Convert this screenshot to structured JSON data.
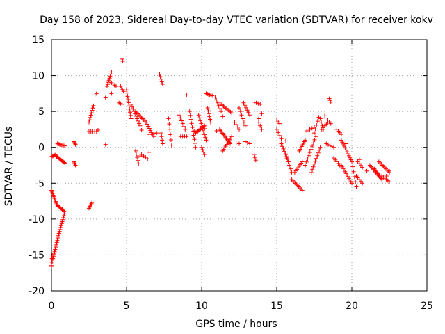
{
  "chart_data": {
    "type": "scatter",
    "title": "Day 158 of 2023, Sidereal Day-to-day VTEC variation (SDTVAR) for receiver kokv",
    "xlabel": "GPS time / hours",
    "ylabel": "SDTVAR / TECUs",
    "xlim": [
      0,
      25
    ],
    "ylim": [
      -20,
      15
    ],
    "xticks": [
      0,
      5,
      10,
      15,
      20,
      25
    ],
    "yticks": [
      -20,
      -15,
      -10,
      -5,
      0,
      5,
      10,
      15
    ],
    "grid": true,
    "marker": "+",
    "color": "#ff0000",
    "series": [
      {
        "name": "SDTVAR",
        "segments": [
          {
            "x0": 0.0,
            "y0": -6.0,
            "x1": 0.35,
            "y1": -8.0,
            "n": 10
          },
          {
            "x0": 0.35,
            "y0": -8.0,
            "x1": 0.9,
            "y1": -9.0,
            "n": 10
          },
          {
            "x0": 0.0,
            "y0": -16.5,
            "x1": 0.05,
            "y1": -15.0,
            "n": 4
          },
          {
            "x0": 0.1,
            "y0": -15.5,
            "x1": 0.5,
            "y1": -12.0,
            "n": 12
          },
          {
            "x0": 0.5,
            "y0": -12.0,
            "x1": 0.9,
            "y1": -9.0,
            "n": 12
          },
          {
            "x0": 0.0,
            "y0": -1.3,
            "x1": 0.3,
            "y1": -1.0,
            "n": 6
          },
          {
            "x0": 0.3,
            "y0": -1.2,
            "x1": 0.9,
            "y1": -2.2,
            "n": 12
          },
          {
            "x0": 0.4,
            "y0": 0.5,
            "x1": 0.9,
            "y1": 0.2,
            "n": 8
          },
          {
            "x0": 1.5,
            "y0": 0.8,
            "x1": 1.6,
            "y1": 0.4,
            "n": 4
          },
          {
            "x0": 1.5,
            "y0": -2.0,
            "x1": 1.6,
            "y1": -2.5,
            "n": 4
          },
          {
            "x0": 2.5,
            "y0": -8.5,
            "x1": 2.7,
            "y1": -7.7,
            "n": 6
          },
          {
            "x0": 2.5,
            "y0": 3.5,
            "x1": 2.8,
            "y1": 5.8,
            "n": 8
          },
          {
            "x0": 2.5,
            "y0": 2.2,
            "x1": 3.0,
            "y1": 2.2,
            "n": 5
          },
          {
            "x0": 3.7,
            "y0": 8.5,
            "x1": 4.0,
            "y1": 10.5,
            "n": 8
          },
          {
            "x0": 4.0,
            "y0": 9.0,
            "x1": 4.3,
            "y1": 8.5,
            "n": 4
          },
          {
            "x0": 4.6,
            "y0": 8.5,
            "x1": 4.8,
            "y1": 7.8,
            "n": 4
          },
          {
            "x0": 4.5,
            "y0": 6.2,
            "x1": 4.7,
            "y1": 6.0,
            "n": 3
          },
          {
            "x0": 5.0,
            "y0": 8.0,
            "x1": 5.3,
            "y1": 4.0,
            "n": 10
          },
          {
            "x0": 5.3,
            "y0": 6.0,
            "x1": 5.9,
            "y1": 3.0,
            "n": 10
          },
          {
            "x0": 5.6,
            "y0": 5.0,
            "x1": 6.3,
            "y1": 3.5,
            "n": 10
          },
          {
            "x0": 5.6,
            "y0": -0.5,
            "x1": 5.8,
            "y1": -2.3,
            "n": 5
          },
          {
            "x0": 6.0,
            "y0": -1.0,
            "x1": 6.4,
            "y1": -1.6,
            "n": 4
          },
          {
            "x0": 6.3,
            "y0": 3.5,
            "x1": 6.8,
            "y1": 1.5,
            "n": 8
          },
          {
            "x0": 6.5,
            "y0": 1.8,
            "x1": 7.0,
            "y1": 2.0,
            "n": 4
          },
          {
            "x0": 7.2,
            "y0": 10.2,
            "x1": 7.4,
            "y1": 8.8,
            "n": 5
          },
          {
            "x0": 7.3,
            "y0": 2.0,
            "x1": 7.4,
            "y1": 0.5,
            "n": 4
          },
          {
            "x0": 7.8,
            "y0": 4.0,
            "x1": 8.0,
            "y1": 0.3,
            "n": 6
          },
          {
            "x0": 8.5,
            "y0": 4.5,
            "x1": 8.9,
            "y1": 2.5,
            "n": 6
          },
          {
            "x0": 8.6,
            "y0": 1.5,
            "x1": 9.0,
            "y1": 1.5,
            "n": 4
          },
          {
            "x0": 9.2,
            "y0": 5.0,
            "x1": 9.6,
            "y1": 0.0,
            "n": 10
          },
          {
            "x0": 9.6,
            "y0": 2.0,
            "x1": 10.2,
            "y1": 3.0,
            "n": 10
          },
          {
            "x0": 9.8,
            "y0": 4.5,
            "x1": 10.3,
            "y1": 1.0,
            "n": 10
          },
          {
            "x0": 10.0,
            "y0": 0.0,
            "x1": 10.2,
            "y1": -1.0,
            "n": 4
          },
          {
            "x0": 10.3,
            "y0": 7.5,
            "x1": 10.7,
            "y1": 7.2,
            "n": 6
          },
          {
            "x0": 10.4,
            "y0": 5.5,
            "x1": 10.6,
            "y1": 3.5,
            "n": 6
          },
          {
            "x0": 10.9,
            "y0": 7.0,
            "x1": 11.3,
            "y1": 5.0,
            "n": 6
          },
          {
            "x0": 11.3,
            "y0": 6.0,
            "x1": 12.0,
            "y1": 4.8,
            "n": 10
          },
          {
            "x0": 11.2,
            "y0": 2.5,
            "x1": 11.9,
            "y1": 0.5,
            "n": 12
          },
          {
            "x0": 11.4,
            "y0": -0.5,
            "x1": 12.0,
            "y1": 1.5,
            "n": 10
          },
          {
            "x0": 12.2,
            "y0": 3.5,
            "x1": 12.5,
            "y1": 2.5,
            "n": 4
          },
          {
            "x0": 12.5,
            "y0": 5.5,
            "x1": 12.9,
            "y1": 3.0,
            "n": 6
          },
          {
            "x0": 12.8,
            "y0": 6.2,
            "x1": 13.2,
            "y1": 4.5,
            "n": 6
          },
          {
            "x0": 12.9,
            "y0": 0.8,
            "x1": 13.2,
            "y1": 0.5,
            "n": 3
          },
          {
            "x0": 13.5,
            "y0": 6.3,
            "x1": 13.9,
            "y1": 6.0,
            "n": 4
          },
          {
            "x0": 13.5,
            "y0": -1.0,
            "x1": 13.6,
            "y1": -1.8,
            "n": 3
          },
          {
            "x0": 13.8,
            "y0": 3.5,
            "x1": 14.0,
            "y1": 2.5,
            "n": 3
          },
          {
            "x0": 15.0,
            "y0": 3.8,
            "x1": 15.2,
            "y1": 3.3,
            "n": 3
          },
          {
            "x0": 15.0,
            "y0": 2.5,
            "x1": 15.3,
            "y1": 1.2,
            "n": 4
          },
          {
            "x0": 15.3,
            "y0": 0.5,
            "x1": 15.8,
            "y1": -2.0,
            "n": 8
          },
          {
            "x0": 15.6,
            "y0": -1.0,
            "x1": 16.0,
            "y1": -3.5,
            "n": 6
          },
          {
            "x0": 16.0,
            "y0": -4.5,
            "x1": 16.7,
            "y1": -6.0,
            "n": 10
          },
          {
            "x0": 16.2,
            "y0": -3.5,
            "x1": 16.7,
            "y1": -2.0,
            "n": 8
          },
          {
            "x0": 16.5,
            "y0": -0.5,
            "x1": 16.9,
            "y1": 1.0,
            "n": 8
          },
          {
            "x0": 16.9,
            "y0": -2.5,
            "x1": 17.6,
            "y1": 1.5,
            "n": 10
          },
          {
            "x0": 17.2,
            "y0": 2.5,
            "x1": 17.5,
            "y1": 2.8,
            "n": 3
          },
          {
            "x0": 17.5,
            "y0": 2.0,
            "x1": 17.8,
            "y1": 4.2,
            "n": 5
          },
          {
            "x0": 17.3,
            "y0": -3.5,
            "x1": 17.9,
            "y1": 0.0,
            "n": 10
          },
          {
            "x0": 17.9,
            "y0": 4.0,
            "x1": 18.1,
            "y1": 2.5,
            "n": 4
          },
          {
            "x0": 18.0,
            "y0": 2.5,
            "x1": 18.4,
            "y1": 3.5,
            "n": 5
          },
          {
            "x0": 18.4,
            "y0": 3.8,
            "x1": 18.6,
            "y1": 3.3,
            "n": 3
          },
          {
            "x0": 18.5,
            "y0": 6.8,
            "x1": 18.6,
            "y1": 6.3,
            "n": 3
          },
          {
            "x0": 18.3,
            "y0": 0.5,
            "x1": 18.8,
            "y1": 0.0,
            "n": 5
          },
          {
            "x0": 18.8,
            "y0": -1.5,
            "x1": 19.2,
            "y1": -2.5,
            "n": 5
          },
          {
            "x0": 19.0,
            "y0": 2.5,
            "x1": 19.3,
            "y1": 1.8,
            "n": 4
          },
          {
            "x0": 19.3,
            "y0": -2.5,
            "x1": 20.0,
            "y1": -5.0,
            "n": 12
          },
          {
            "x0": 19.3,
            "y0": 1.0,
            "x1": 20.0,
            "y1": -2.0,
            "n": 12
          },
          {
            "x0": 20.0,
            "y0": -2.0,
            "x1": 20.3,
            "y1": -5.5,
            "n": 6
          },
          {
            "x0": 20.3,
            "y0": -4.0,
            "x1": 20.7,
            "y1": -5.0,
            "n": 5
          },
          {
            "x0": 20.4,
            "y0": -2.0,
            "x1": 20.7,
            "y1": -2.8,
            "n": 4
          },
          {
            "x0": 21.2,
            "y0": -2.5,
            "x1": 21.8,
            "y1": -4.0,
            "n": 10
          },
          {
            "x0": 21.5,
            "y0": -3.0,
            "x1": 22.0,
            "y1": -4.5,
            "n": 10
          },
          {
            "x0": 21.8,
            "y0": -2.0,
            "x1": 22.5,
            "y1": -3.5,
            "n": 10
          },
          {
            "x0": 22.0,
            "y0": -4.0,
            "x1": 22.5,
            "y1": -4.8,
            "n": 6
          }
        ],
        "points": [
          [
            0.05,
            -16.0
          ],
          [
            0.0,
            -16.5
          ],
          [
            0.05,
            -15.5
          ],
          [
            3.6,
            0.4
          ],
          [
            3.6,
            6.9
          ],
          [
            4.0,
            7.5
          ],
          [
            4.7,
            12.3
          ],
          [
            4.75,
            12.0
          ],
          [
            2.9,
            7.3
          ],
          [
            3.0,
            7.5
          ],
          [
            3.1,
            2.4
          ],
          [
            6.0,
            2.4
          ],
          [
            5.9,
            -1.2
          ],
          [
            6.5,
            -0.7
          ],
          [
            9.0,
            7.3
          ],
          [
            9.5,
            2.3
          ],
          [
            10.2,
            2.6
          ],
          [
            11.4,
            4.3
          ],
          [
            11.0,
            2.3
          ],
          [
            12.3,
            0.6
          ],
          [
            12.5,
            0.5
          ],
          [
            14.0,
            4.7
          ],
          [
            13.8,
            4.0
          ],
          [
            15.6,
            0.9
          ],
          [
            17.0,
            2.3
          ],
          [
            18.2,
            4.4
          ],
          [
            19.6,
            0.5
          ],
          [
            20.5,
            -1.7
          ],
          [
            21.0,
            -3.3
          ],
          [
            22.3,
            -4.0
          ],
          [
            22.5,
            -3.3
          ]
        ]
      }
    ]
  }
}
